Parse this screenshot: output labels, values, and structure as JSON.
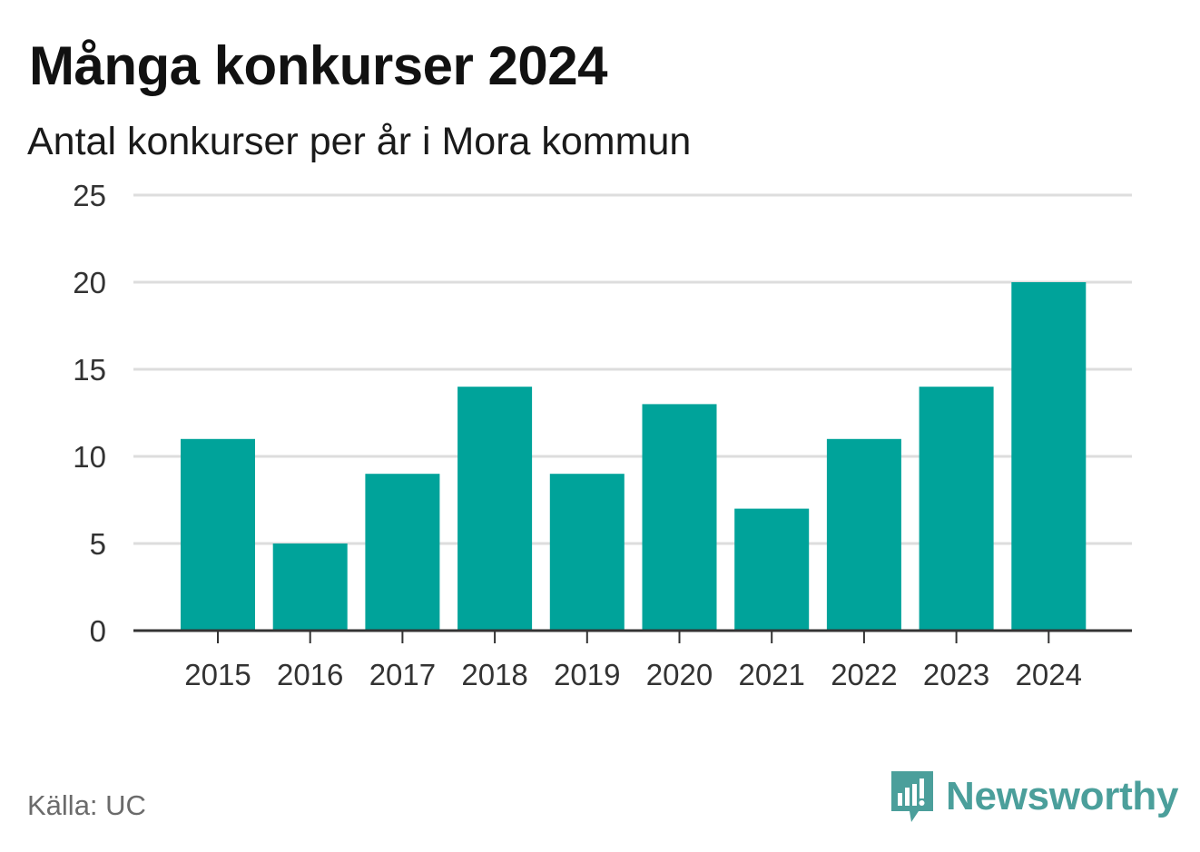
{
  "title": "Många konkurser 2024",
  "subtitle": "Antal konkurser per år i Mora kommun",
  "source": "Källa: UC",
  "brand": {
    "name": "Newsworthy",
    "icon": "newsworthy-logo-icon",
    "color": "#4b9f9b"
  },
  "chart_data": {
    "type": "bar",
    "categories": [
      "2015",
      "2016",
      "2017",
      "2018",
      "2019",
      "2020",
      "2021",
      "2022",
      "2023",
      "2024"
    ],
    "values": [
      11,
      5,
      9,
      14,
      9,
      13,
      7,
      11,
      14,
      20
    ],
    "ylim": [
      0,
      25
    ],
    "yticks": [
      0,
      5,
      10,
      15,
      20,
      25
    ],
    "ytick_labels": [
      "0",
      "5",
      "10",
      "15",
      "20",
      "25"
    ],
    "grid": true,
    "legend": "none",
    "bar_color": "#00a39a",
    "grid_color": "#dddddd",
    "axis_color": "#333333"
  }
}
